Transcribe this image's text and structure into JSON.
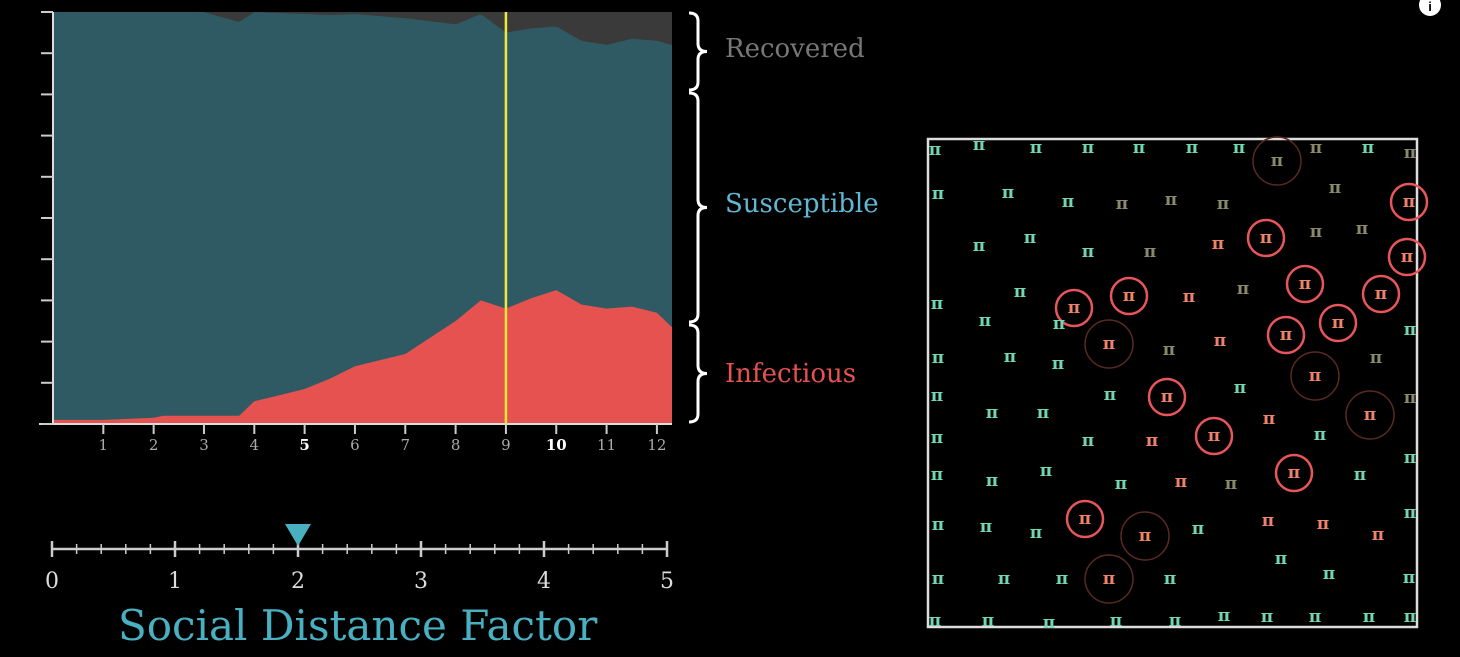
{
  "chart_data": {
    "type": "area",
    "stacked": true,
    "x_ticks": [
      "1",
      "2",
      "3",
      "4",
      "5",
      "6",
      "7",
      "8",
      "9",
      "10",
      "11",
      "12"
    ],
    "highlighted_ticks": [
      "5",
      "10"
    ],
    "xlim": [
      0,
      12.3
    ],
    "ylim": [
      0,
      1
    ],
    "current_day": 9,
    "series": [
      {
        "name": "Infectious",
        "color": "#e5524f",
        "x": [
          0,
          1,
          2,
          2.2,
          3,
          3.7,
          4,
          4.5,
          5,
          5.5,
          6,
          6.5,
          7,
          7.5,
          8,
          8.5,
          9,
          9.5,
          10,
          10.5,
          11,
          11.5,
          12,
          12.3
        ],
        "values": [
          0.01,
          0.01,
          0.015,
          0.02,
          0.02,
          0.02,
          0.055,
          0.07,
          0.085,
          0.11,
          0.14,
          0.155,
          0.17,
          0.21,
          0.25,
          0.3,
          0.28,
          0.305,
          0.325,
          0.29,
          0.28,
          0.285,
          0.27,
          0.235
        ]
      },
      {
        "name": "Susceptible",
        "color": "#2f5a63",
        "x": [
          0,
          1,
          2,
          3,
          4,
          5,
          6,
          7,
          8,
          9,
          10,
          11,
          12,
          12.3
        ],
        "values": [
          0.99,
          0.99,
          0.985,
          0.98,
          0.945,
          0.91,
          0.855,
          0.815,
          0.72,
          0.67,
          0.64,
          0.64,
          0.66,
          0.685
        ]
      },
      {
        "name": "Recovered",
        "color": "#3a3a3a",
        "x": [
          0,
          5,
          6,
          7,
          8,
          9,
          10,
          11,
          12,
          12.3
        ],
        "values": [
          0,
          0.005,
          0.005,
          0.01,
          0.025,
          0.05,
          0.07,
          0.09,
          0.11,
          0.125
        ]
      }
    ],
    "legend": [
      "Recovered",
      "Susceptible",
      "Infectious"
    ]
  },
  "slider": {
    "title": "Social Distance Factor",
    "min": 0,
    "max": 5,
    "value": 2,
    "tick_labels": [
      "0",
      "1",
      "2",
      "3",
      "4",
      "5"
    ]
  },
  "simulation": {
    "glyph": "π",
    "colors": {
      "susceptible": "#6fd6b6",
      "infectious": "#f08267",
      "recovered": "#8a8a6a"
    }
  }
}
